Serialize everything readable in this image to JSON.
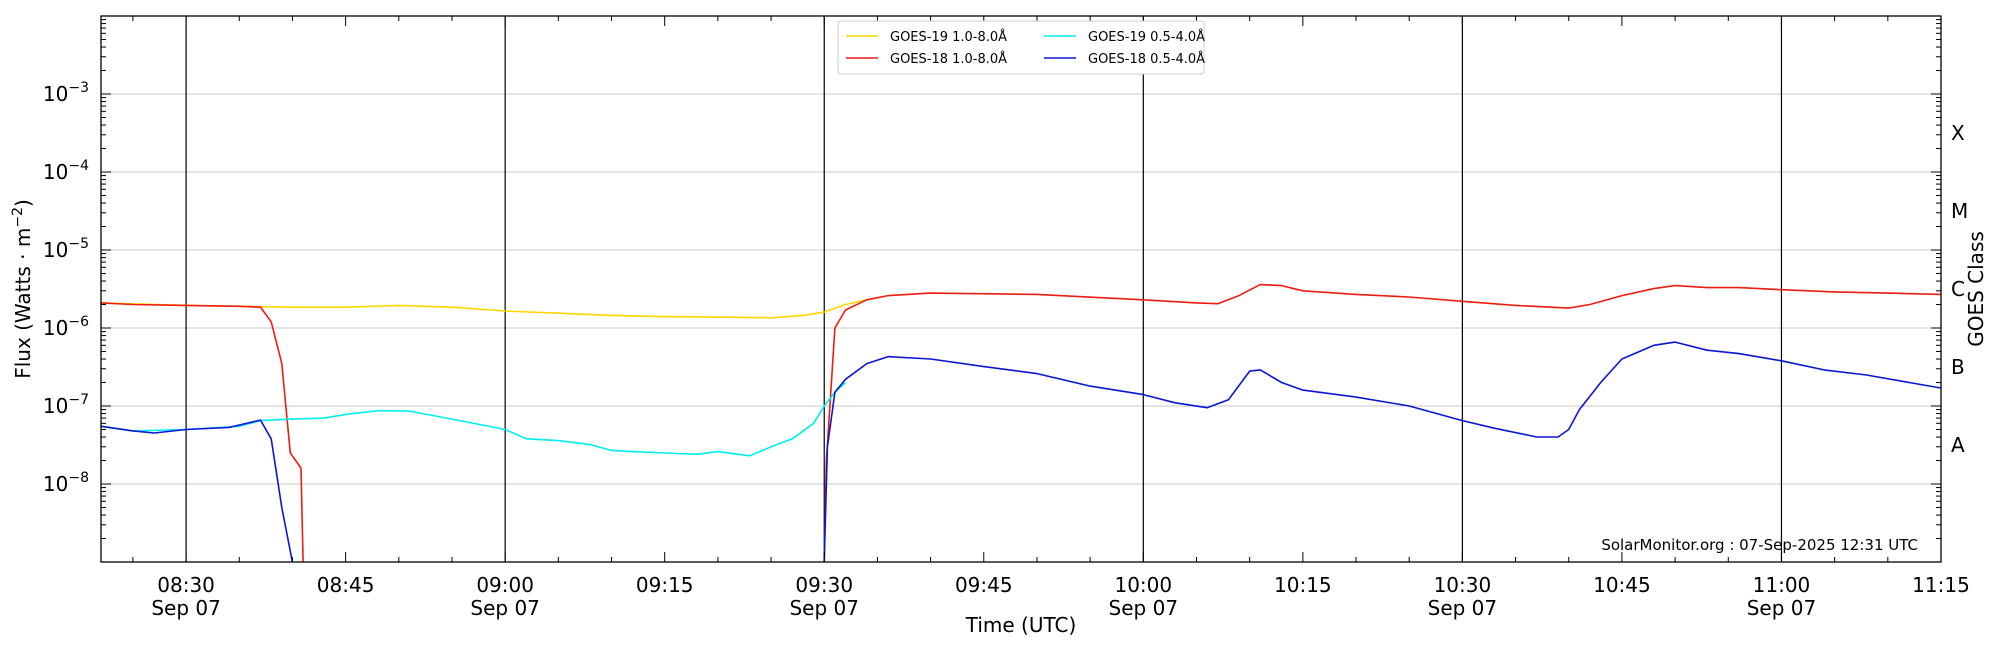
{
  "chart_data": {
    "type": "line",
    "xlabel": "Time (UTC)",
    "ylabel": "Flux (Watts · m",
    "ylabel_sup": "−2",
    "ylabel_close": ")",
    "y2label": "GOES Class",
    "yscale": "log",
    "xlim": [
      "08:22",
      "11:15"
    ],
    "ylim": [
      1e-09,
      0.01
    ],
    "grid": "horizontal",
    "legend_position": "top-center",
    "watermark": "SolarMonitor.org : 07-Sep-2025 12:31 UTC",
    "x_ticks": [
      {
        "time": "08:30",
        "label": "08:30",
        "sublabel": "Sep 07",
        "major": true
      },
      {
        "time": "08:45",
        "label": "08:45",
        "sublabel": "",
        "major": false
      },
      {
        "time": "09:00",
        "label": "09:00",
        "sublabel": "Sep 07",
        "major": true
      },
      {
        "time": "09:15",
        "label": "09:15",
        "sublabel": "",
        "major": false
      },
      {
        "time": "09:30",
        "label": "09:30",
        "sublabel": "Sep 07",
        "major": true
      },
      {
        "time": "09:45",
        "label": "09:45",
        "sublabel": "",
        "major": false
      },
      {
        "time": "10:00",
        "label": "10:00",
        "sublabel": "Sep 07",
        "major": true
      },
      {
        "time": "10:15",
        "label": "10:15",
        "sublabel": "",
        "major": false
      },
      {
        "time": "10:30",
        "label": "10:30",
        "sublabel": "Sep 07",
        "major": true
      },
      {
        "time": "10:45",
        "label": "10:45",
        "sublabel": "",
        "major": false
      },
      {
        "time": "11:00",
        "label": "11:00",
        "sublabel": "Sep 07",
        "major": true
      },
      {
        "time": "11:15",
        "label": "11:15",
        "sublabel": "",
        "major": false
      }
    ],
    "y_ticks": [
      {
        "value": 1e-08,
        "base": "10",
        "exp": "−8"
      },
      {
        "value": 1e-07,
        "base": "10",
        "exp": "−7"
      },
      {
        "value": 1e-06,
        "base": "10",
        "exp": "−6"
      },
      {
        "value": 1e-05,
        "base": "10",
        "exp": "−5"
      },
      {
        "value": 0.0001,
        "base": "10",
        "exp": "−4"
      },
      {
        "value": 0.001,
        "base": "10",
        "exp": "−3"
      }
    ],
    "goes_classes": [
      {
        "label": "A",
        "value": 3.16e-08
      },
      {
        "label": "B",
        "value": 3.16e-07
      },
      {
        "label": "C",
        "value": 3.16e-06
      },
      {
        "label": "M",
        "value": 3.16e-05
      },
      {
        "label": "X",
        "value": 0.000316
      }
    ],
    "series": [
      {
        "name": "GOES-19 1.0-8.0Å",
        "color": "#ffd700",
        "points": [
          [
            "08:22",
            2.1e-06
          ],
          [
            "08:30",
            1.95e-06
          ],
          [
            "08:35",
            1.9e-06
          ],
          [
            "08:40",
            1.85e-06
          ],
          [
            "08:45",
            1.85e-06
          ],
          [
            "08:50",
            1.95e-06
          ],
          [
            "08:55",
            1.85e-06
          ],
          [
            "09:00",
            1.65e-06
          ],
          [
            "09:05",
            1.55e-06
          ],
          [
            "09:10",
            1.45e-06
          ],
          [
            "09:15",
            1.4e-06
          ],
          [
            "09:20",
            1.38e-06
          ],
          [
            "09:25",
            1.35e-06
          ],
          [
            "09:28",
            1.45e-06
          ],
          [
            "09:30",
            1.6e-06
          ],
          [
            "09:32",
            2e-06
          ],
          [
            "09:34",
            2.3e-06
          ]
        ]
      },
      {
        "name": "GOES-18 1.0-8.0Å",
        "color": "#ee1c11",
        "points": [
          [
            "08:22",
            2.1e-06
          ],
          [
            "08:25",
            2e-06
          ],
          [
            "08:30",
            1.95e-06
          ],
          [
            "08:35",
            1.9e-06
          ],
          [
            "08:37",
            1.85e-06
          ],
          [
            "08:38",
            1.2e-06
          ],
          [
            "08:39",
            3.5e-07
          ],
          [
            "08:39.8",
            2.5e-08
          ],
          [
            "08:40.8",
            1.6e-08
          ],
          [
            "08:41",
            1e-09
          ],
          null,
          [
            "09:30",
            1e-09
          ],
          [
            "09:30.2",
            2e-08
          ],
          [
            "09:31",
            1e-06
          ],
          [
            "09:32",
            1.7e-06
          ],
          [
            "09:34",
            2.3e-06
          ],
          [
            "09:36",
            2.6e-06
          ],
          [
            "09:40",
            2.8e-06
          ],
          [
            "09:50",
            2.7e-06
          ],
          [
            "10:00",
            2.3e-06
          ],
          [
            "10:05",
            2.1e-06
          ],
          [
            "10:07",
            2.05e-06
          ],
          [
            "10:09",
            2.6e-06
          ],
          [
            "10:11",
            3.6e-06
          ],
          [
            "10:13",
            3.5e-06
          ],
          [
            "10:15",
            3e-06
          ],
          [
            "10:20",
            2.7e-06
          ],
          [
            "10:25",
            2.5e-06
          ],
          [
            "10:30",
            2.2e-06
          ],
          [
            "10:35",
            1.95e-06
          ],
          [
            "10:40",
            1.8e-06
          ],
          [
            "10:42",
            2e-06
          ],
          [
            "10:45",
            2.6e-06
          ],
          [
            "10:48",
            3.2e-06
          ],
          [
            "10:50",
            3.5e-06
          ],
          [
            "10:53",
            3.3e-06
          ],
          [
            "10:56",
            3.3e-06
          ],
          [
            "11:00",
            3.1e-06
          ],
          [
            "11:05",
            2.9e-06
          ],
          [
            "11:10",
            2.8e-06
          ],
          [
            "11:15",
            2.7e-06
          ]
        ]
      },
      {
        "name": "GOES-19 0.5-4.0Å",
        "color": "#00eeee",
        "points": [
          [
            "08:22",
            5.5e-08
          ],
          [
            "08:25",
            4.8e-08
          ],
          [
            "08:30",
            5e-08
          ],
          [
            "08:35",
            5.5e-08
          ],
          [
            "08:37",
            6.5e-08
          ],
          [
            "08:40",
            6.8e-08
          ],
          [
            "08:43",
            7e-08
          ],
          [
            "08:45",
            7.8e-08
          ],
          [
            "08:48",
            8.7e-08
          ],
          [
            "08:51",
            8.6e-08
          ],
          [
            "08:55",
            6.8e-08
          ],
          [
            "09:00",
            5e-08
          ],
          [
            "09:02",
            3.8e-08
          ],
          [
            "09:05",
            3.6e-08
          ],
          [
            "09:08",
            3.2e-08
          ],
          [
            "09:10",
            2.7e-08
          ],
          [
            "09:12",
            2.6e-08
          ],
          [
            "09:15",
            2.5e-08
          ],
          [
            "09:18",
            2.4e-08
          ],
          [
            "09:20",
            2.6e-08
          ],
          [
            "09:23",
            2.3e-08
          ],
          [
            "09:25",
            3e-08
          ],
          [
            "09:27",
            3.8e-08
          ],
          [
            "09:29",
            6e-08
          ],
          [
            "09:30",
            1e-07
          ],
          [
            "09:31",
            1.5e-07
          ],
          [
            "09:32",
            2e-07
          ]
        ]
      },
      {
        "name": "GOES-18 0.5-4.0Å",
        "color": "#0a16d4",
        "points": [
          [
            "08:22",
            5.5e-08
          ],
          [
            "08:25",
            4.8e-08
          ],
          [
            "08:27",
            4.5e-08
          ],
          [
            "08:30",
            5e-08
          ],
          [
            "08:34",
            5.3e-08
          ],
          [
            "08:37",
            6.6e-08
          ],
          [
            "08:38",
            3.8e-08
          ],
          [
            "08:39",
            5e-09
          ],
          [
            "08:40",
            1e-09
          ],
          null,
          [
            "09:30",
            1e-09
          ],
          [
            "09:30.3",
            3e-08
          ],
          [
            "09:31",
            1.5e-07
          ],
          [
            "09:32",
            2.2e-07
          ],
          [
            "09:34",
            3.5e-07
          ],
          [
            "09:36",
            4.3e-07
          ],
          [
            "09:40",
            4e-07
          ],
          [
            "09:45",
            3.2e-07
          ],
          [
            "09:50",
            2.6e-07
          ],
          [
            "09:55",
            1.8e-07
          ],
          [
            "10:00",
            1.4e-07
          ],
          [
            "10:03",
            1.1e-07
          ],
          [
            "10:06",
            9.5e-08
          ],
          [
            "10:08",
            1.2e-07
          ],
          [
            "10:10",
            2.8e-07
          ],
          [
            "10:11",
            2.9e-07
          ],
          [
            "10:13",
            2e-07
          ],
          [
            "10:15",
            1.6e-07
          ],
          [
            "10:20",
            1.3e-07
          ],
          [
            "10:25",
            1e-07
          ],
          [
            "10:30",
            6.5e-08
          ],
          [
            "10:33",
            5.2e-08
          ],
          [
            "10:37",
            4e-08
          ],
          [
            "10:39",
            4e-08
          ],
          [
            "10:40",
            5e-08
          ],
          [
            "10:41",
            9e-08
          ],
          [
            "10:43",
            2e-07
          ],
          [
            "10:45",
            4e-07
          ],
          [
            "10:48",
            6e-07
          ],
          [
            "10:50",
            6.6e-07
          ],
          [
            "10:53",
            5.2e-07
          ],
          [
            "10:56",
            4.7e-07
          ],
          [
            "11:00",
            3.8e-07
          ],
          [
            "11:04",
            2.9e-07
          ],
          [
            "11:08",
            2.5e-07
          ],
          [
            "11:12",
            2e-07
          ],
          [
            "11:15",
            1.7e-07
          ]
        ]
      }
    ]
  }
}
